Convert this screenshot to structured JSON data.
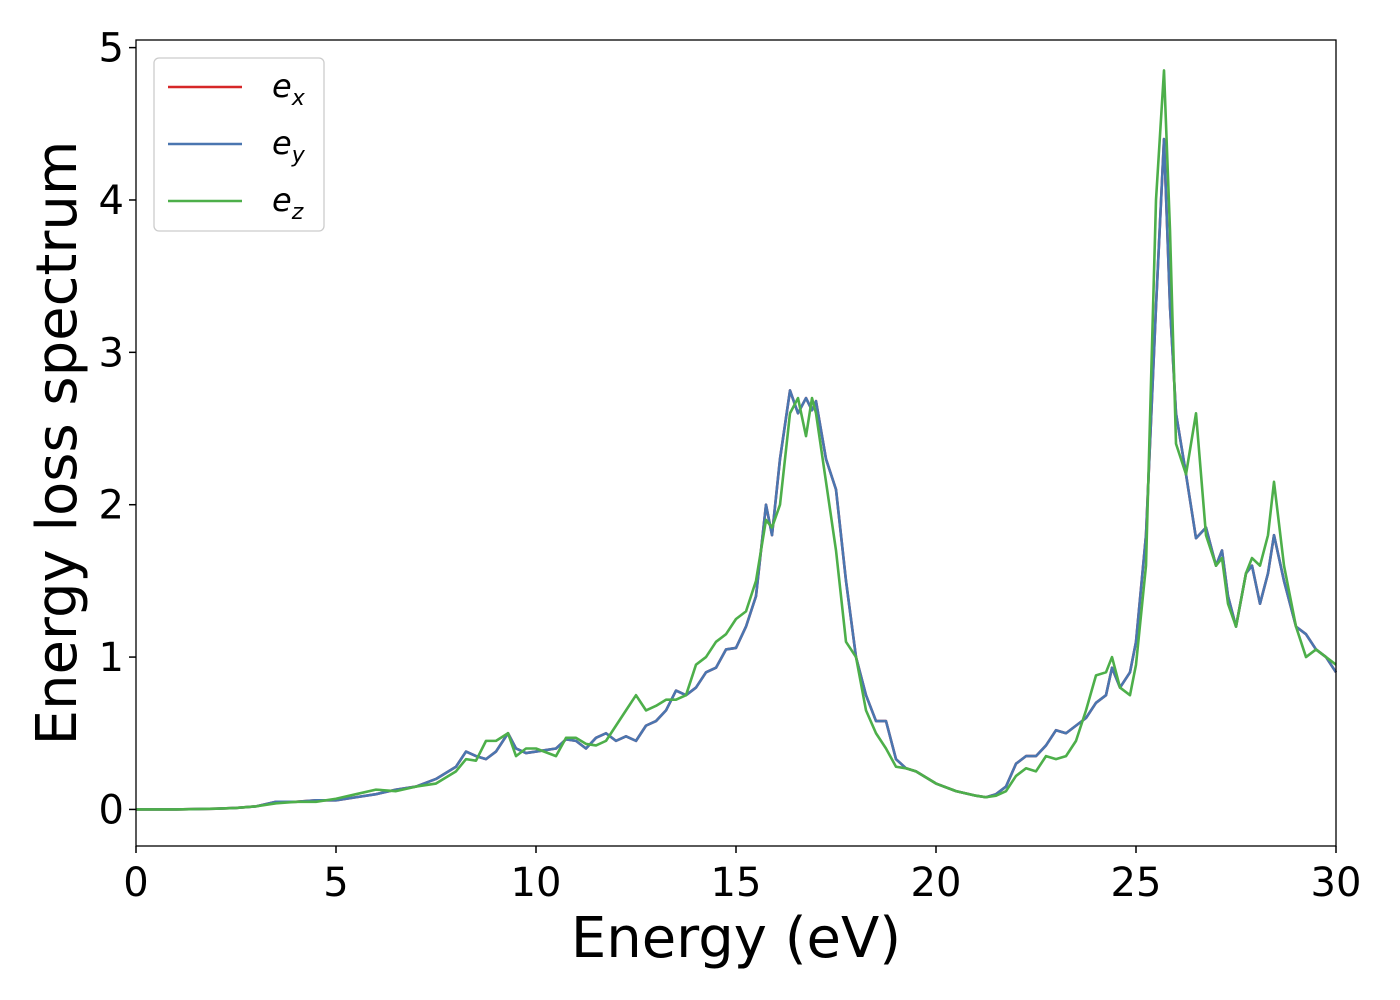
{
  "chart_data": {
    "type": "line",
    "x_label": "Energy (eV)",
    "y_label": "Energy loss spectrum",
    "x": [
      0,
      1,
      2,
      2.5,
      3,
      3.5,
      4,
      4.5,
      5,
      5.5,
      6,
      6.5,
      7,
      7.5,
      8,
      8.25,
      8.5,
      8.75,
      9,
      9.3,
      9.5,
      9.75,
      10,
      10.5,
      10.75,
      11,
      11.25,
      11.5,
      11.75,
      12,
      12.25,
      12.5,
      12.75,
      13,
      13.25,
      13.5,
      13.75,
      14,
      14.25,
      14.5,
      14.75,
      15,
      15.25,
      15.5,
      15.75,
      15.9,
      16.1,
      16.35,
      16.55,
      16.75,
      16.9,
      17,
      17.25,
      17.5,
      17.75,
      18,
      18.25,
      18.5,
      18.75,
      19,
      19.25,
      19.5,
      20,
      20.5,
      21,
      21.25,
      21.5,
      21.75,
      22,
      22.25,
      22.5,
      22.75,
      23,
      23.25,
      23.5,
      23.75,
      24,
      24.25,
      24.4,
      24.6,
      24.85,
      25,
      25.25,
      25.5,
      25.7,
      25.85,
      26,
      26.25,
      26.5,
      26.75,
      27,
      27.15,
      27.3,
      27.5,
      27.75,
      27.9,
      28.1,
      28.3,
      28.45,
      28.7,
      29,
      29.25,
      29.5,
      29.75,
      30
    ],
    "series": [
      {
        "name": "e",
        "subscript": "x",
        "color": "#d62728",
        "values": [
          0,
          0,
          0.005,
          0.01,
          0.02,
          0.05,
          0.05,
          0.06,
          0.06,
          0.08,
          0.1,
          0.13,
          0.15,
          0.2,
          0.28,
          0.38,
          0.35,
          0.33,
          0.38,
          0.5,
          0.4,
          0.37,
          0.38,
          0.4,
          0.46,
          0.45,
          0.4,
          0.47,
          0.5,
          0.45,
          0.48,
          0.45,
          0.55,
          0.58,
          0.65,
          0.78,
          0.75,
          0.8,
          0.9,
          0.93,
          1.05,
          1.06,
          1.2,
          1.4,
          2.0,
          1.8,
          2.3,
          2.75,
          2.6,
          2.7,
          2.62,
          2.68,
          2.3,
          2.1,
          1.5,
          1.0,
          0.75,
          0.58,
          0.58,
          0.33,
          0.27,
          0.25,
          0.17,
          0.12,
          0.09,
          0.08,
          0.1,
          0.15,
          0.3,
          0.35,
          0.35,
          0.42,
          0.52,
          0.5,
          0.55,
          0.6,
          0.7,
          0.75,
          0.93,
          0.8,
          0.9,
          1.1,
          1.8,
          3.3,
          4.4,
          3.3,
          2.6,
          2.2,
          1.78,
          1.85,
          1.6,
          1.7,
          1.4,
          1.2,
          1.55,
          1.6,
          1.35,
          1.55,
          1.8,
          1.5,
          1.2,
          1.15,
          1.05,
          1.0,
          0.9
        ]
      },
      {
        "name": "e",
        "subscript": "y",
        "color": "#4a76b0",
        "values": [
          0,
          0,
          0.005,
          0.01,
          0.02,
          0.05,
          0.05,
          0.06,
          0.06,
          0.08,
          0.1,
          0.13,
          0.15,
          0.2,
          0.28,
          0.38,
          0.35,
          0.33,
          0.38,
          0.5,
          0.4,
          0.37,
          0.38,
          0.4,
          0.46,
          0.45,
          0.4,
          0.47,
          0.5,
          0.45,
          0.48,
          0.45,
          0.55,
          0.58,
          0.65,
          0.78,
          0.75,
          0.8,
          0.9,
          0.93,
          1.05,
          1.06,
          1.2,
          1.4,
          2.0,
          1.8,
          2.3,
          2.75,
          2.6,
          2.7,
          2.62,
          2.68,
          2.3,
          2.1,
          1.5,
          1.0,
          0.75,
          0.58,
          0.58,
          0.33,
          0.27,
          0.25,
          0.17,
          0.12,
          0.09,
          0.08,
          0.1,
          0.15,
          0.3,
          0.35,
          0.35,
          0.42,
          0.52,
          0.5,
          0.55,
          0.6,
          0.7,
          0.75,
          0.93,
          0.8,
          0.9,
          1.1,
          1.8,
          3.3,
          4.4,
          3.3,
          2.6,
          2.2,
          1.78,
          1.85,
          1.6,
          1.7,
          1.4,
          1.2,
          1.55,
          1.6,
          1.35,
          1.55,
          1.8,
          1.5,
          1.2,
          1.15,
          1.05,
          1.0,
          0.9
        ]
      },
      {
        "name": "e",
        "subscript": "z",
        "color": "#4daf4a",
        "values": [
          0,
          0,
          0.005,
          0.01,
          0.02,
          0.04,
          0.05,
          0.05,
          0.07,
          0.1,
          0.13,
          0.12,
          0.15,
          0.17,
          0.25,
          0.33,
          0.32,
          0.45,
          0.45,
          0.5,
          0.35,
          0.4,
          0.4,
          0.35,
          0.47,
          0.47,
          0.43,
          0.42,
          0.45,
          0.55,
          0.65,
          0.75,
          0.65,
          0.68,
          0.72,
          0.72,
          0.75,
          0.95,
          1.0,
          1.1,
          1.15,
          1.25,
          1.3,
          1.5,
          1.9,
          1.85,
          2.0,
          2.6,
          2.7,
          2.45,
          2.7,
          2.6,
          2.15,
          1.7,
          1.1,
          1.0,
          0.65,
          0.5,
          0.4,
          0.28,
          0.27,
          0.25,
          0.17,
          0.12,
          0.09,
          0.08,
          0.09,
          0.12,
          0.22,
          0.27,
          0.25,
          0.35,
          0.33,
          0.35,
          0.45,
          0.65,
          0.88,
          0.9,
          1.0,
          0.8,
          0.75,
          0.95,
          1.6,
          4.0,
          4.85,
          3.8,
          2.4,
          2.2,
          2.6,
          1.8,
          1.6,
          1.65,
          1.35,
          1.2,
          1.55,
          1.65,
          1.6,
          1.8,
          2.15,
          1.6,
          1.2,
          1.0,
          1.05,
          1.0,
          0.95
        ]
      }
    ],
    "xlim": [
      0,
      30
    ],
    "xticks": [
      0,
      5,
      10,
      15,
      20,
      25,
      30
    ],
    "ylim": [
      -0.24,
      5.05
    ],
    "yticks": [
      0,
      1,
      2,
      3,
      4,
      5
    ],
    "legend": "upper left",
    "grid": false
  }
}
